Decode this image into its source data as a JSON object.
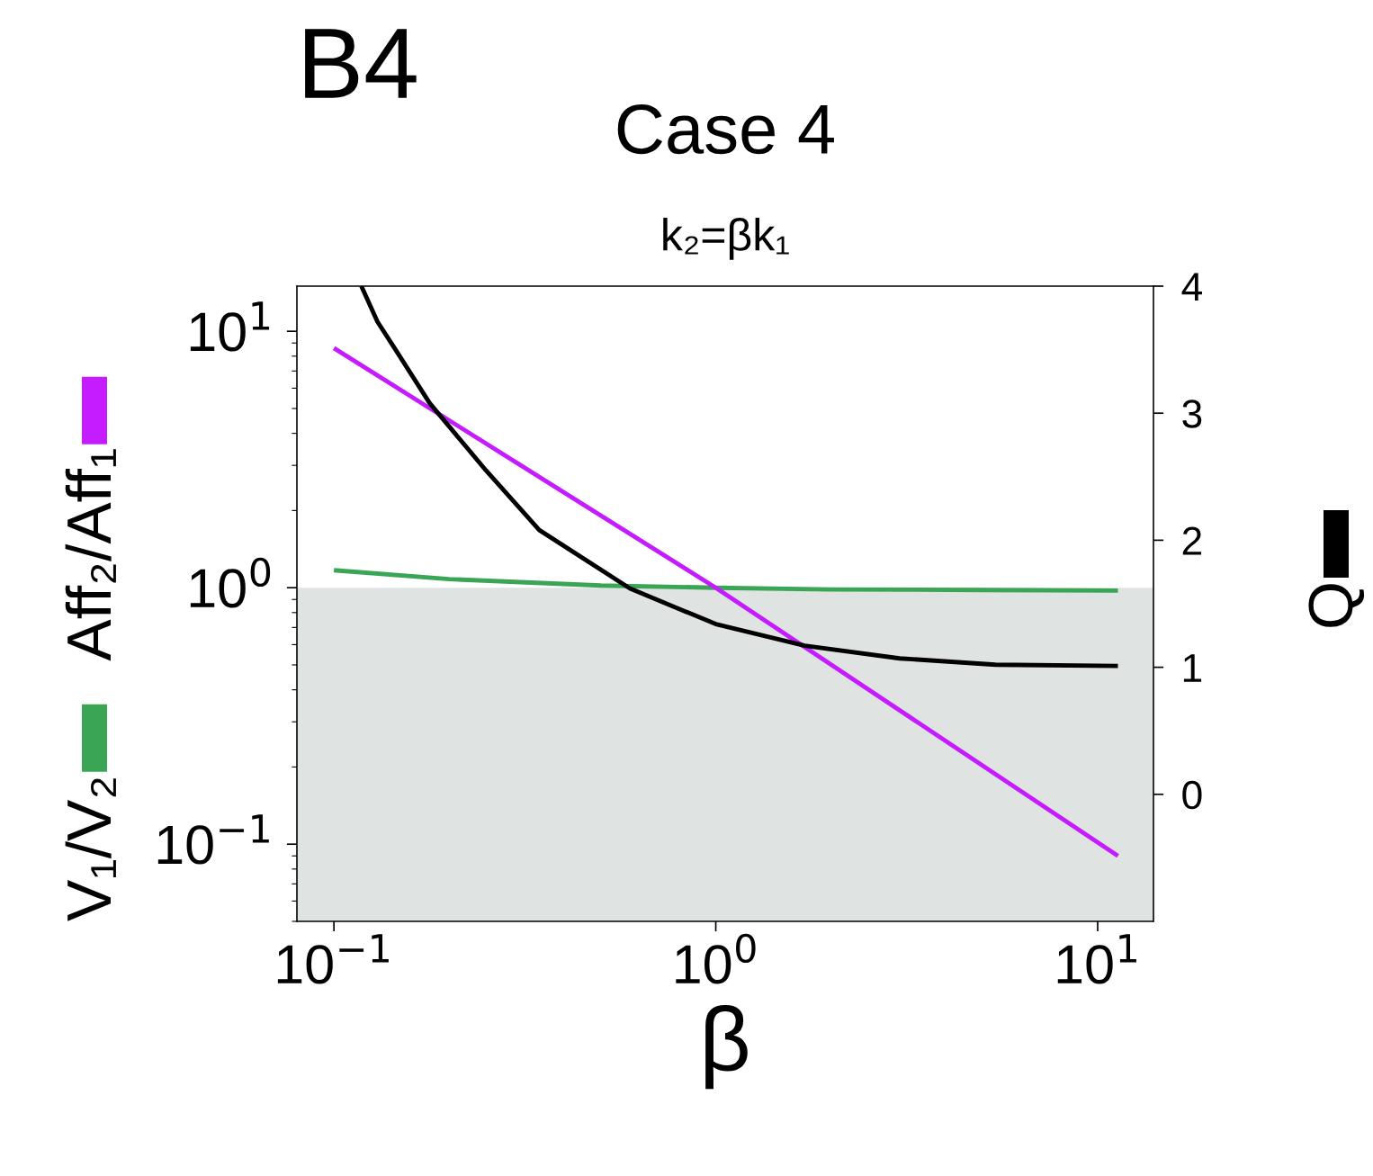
{
  "chart_data": {
    "type": "line",
    "title": "Case 4",
    "subtitle": "k₂=βk₁",
    "annotations": [
      "B4"
    ],
    "xlabel": "β",
    "log": "xy",
    "xlim": [
      0.08,
      14
    ],
    "xticks": [
      {
        "value": 0.1,
        "label": "10$^{−1}$"
      },
      {
        "value": 1,
        "label": "10$^{0}$"
      },
      {
        "value": 10,
        "label": "10$^{1}$"
      }
    ],
    "ylim": [
      0.05,
      15
    ],
    "yticks": [
      {
        "value": 0.1,
        "label": "10$^{−1}$"
      },
      {
        "value": 1,
        "label": "10$^{0}$"
      },
      {
        "value": 10,
        "label": "10$^{1}$"
      }
    ],
    "y2lim": [
      -1,
      4
    ],
    "y2ticks": [
      0,
      1,
      2,
      3,
      4
    ],
    "bands": [
      {
        "axis": "y",
        "from": 0.05,
        "to": 1,
        "color": "#dfe4e2"
      }
    ],
    "legend": "left",
    "series": [
      {
        "name": "V₁/V₂",
        "color": "#3aa655",
        "x": [
          0.1,
          0.2,
          0.5,
          1,
          2,
          5,
          11.3
        ],
        "values": [
          1.17,
          1.08,
          1.02,
          1.0,
          0.985,
          0.98,
          0.975
        ]
      },
      {
        "name": "Aff₂/Aff₁",
        "color": "#c41cff",
        "x": [
          0.1,
          1,
          11.3
        ],
        "values": [
          8.6,
          1.0,
          0.09
        ]
      },
      {
        "name": "Q",
        "color": "#000000",
        "axis": "y2",
        "x": [
          0.118,
          0.13,
          0.145,
          0.178,
          0.25,
          0.345,
          0.596,
          1,
          1.71,
          3.03,
          5.4,
          11.3
        ],
        "values": [
          4.0,
          3.72,
          3.5,
          3.08,
          2.55,
          2.08,
          1.62,
          1.34,
          1.17,
          1.07,
          1.02,
          1.01
        ]
      }
    ]
  }
}
